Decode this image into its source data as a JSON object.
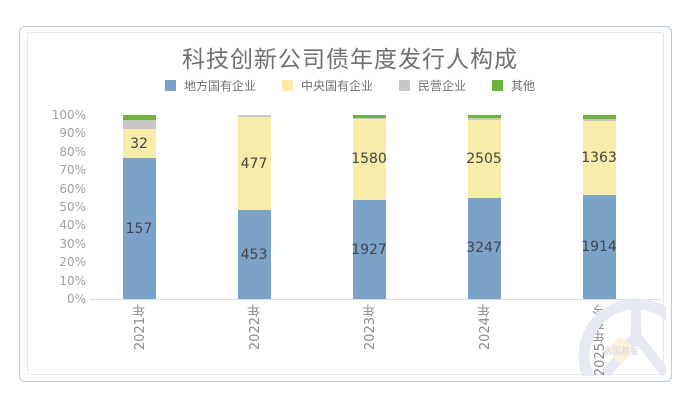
{
  "chart_data": {
    "type": "bar",
    "stacked": true,
    "normalized_percent": true,
    "title": "科技创新公司债年度发行人构成",
    "xlabel": "",
    "ylabel": "",
    "ylim": [
      0,
      100
    ],
    "y_ticks": [
      "0%",
      "10%",
      "20%",
      "30%",
      "40%",
      "50%",
      "60%",
      "70%",
      "80%",
      "90%",
      "100%"
    ],
    "categories": [
      "2021年",
      "2022年",
      "2023年",
      "2024年",
      "2025年至今"
    ],
    "legend_position": "top",
    "grid": false,
    "series": [
      {
        "name": "地方国有企业",
        "color": "#7ba3c9",
        "values": [
          157,
          453,
          1927,
          3247,
          1914
        ],
        "labeled": true
      },
      {
        "name": "中央国有企业",
        "color": "#f7eca8",
        "values": [
          32,
          477,
          1580,
          2505,
          1363
        ],
        "labeled": true
      },
      {
        "name": "民营企业",
        "color": "#c8c8c8",
        "values": [
          10,
          10,
          20,
          80,
          35
        ],
        "labeled": false
      },
      {
        "name": "其他",
        "color": "#6db33f",
        "values": [
          6,
          0,
          55,
          82,
          75
        ],
        "labeled": false
      }
    ]
  },
  "watermark": {
    "text": "富国基金"
  }
}
